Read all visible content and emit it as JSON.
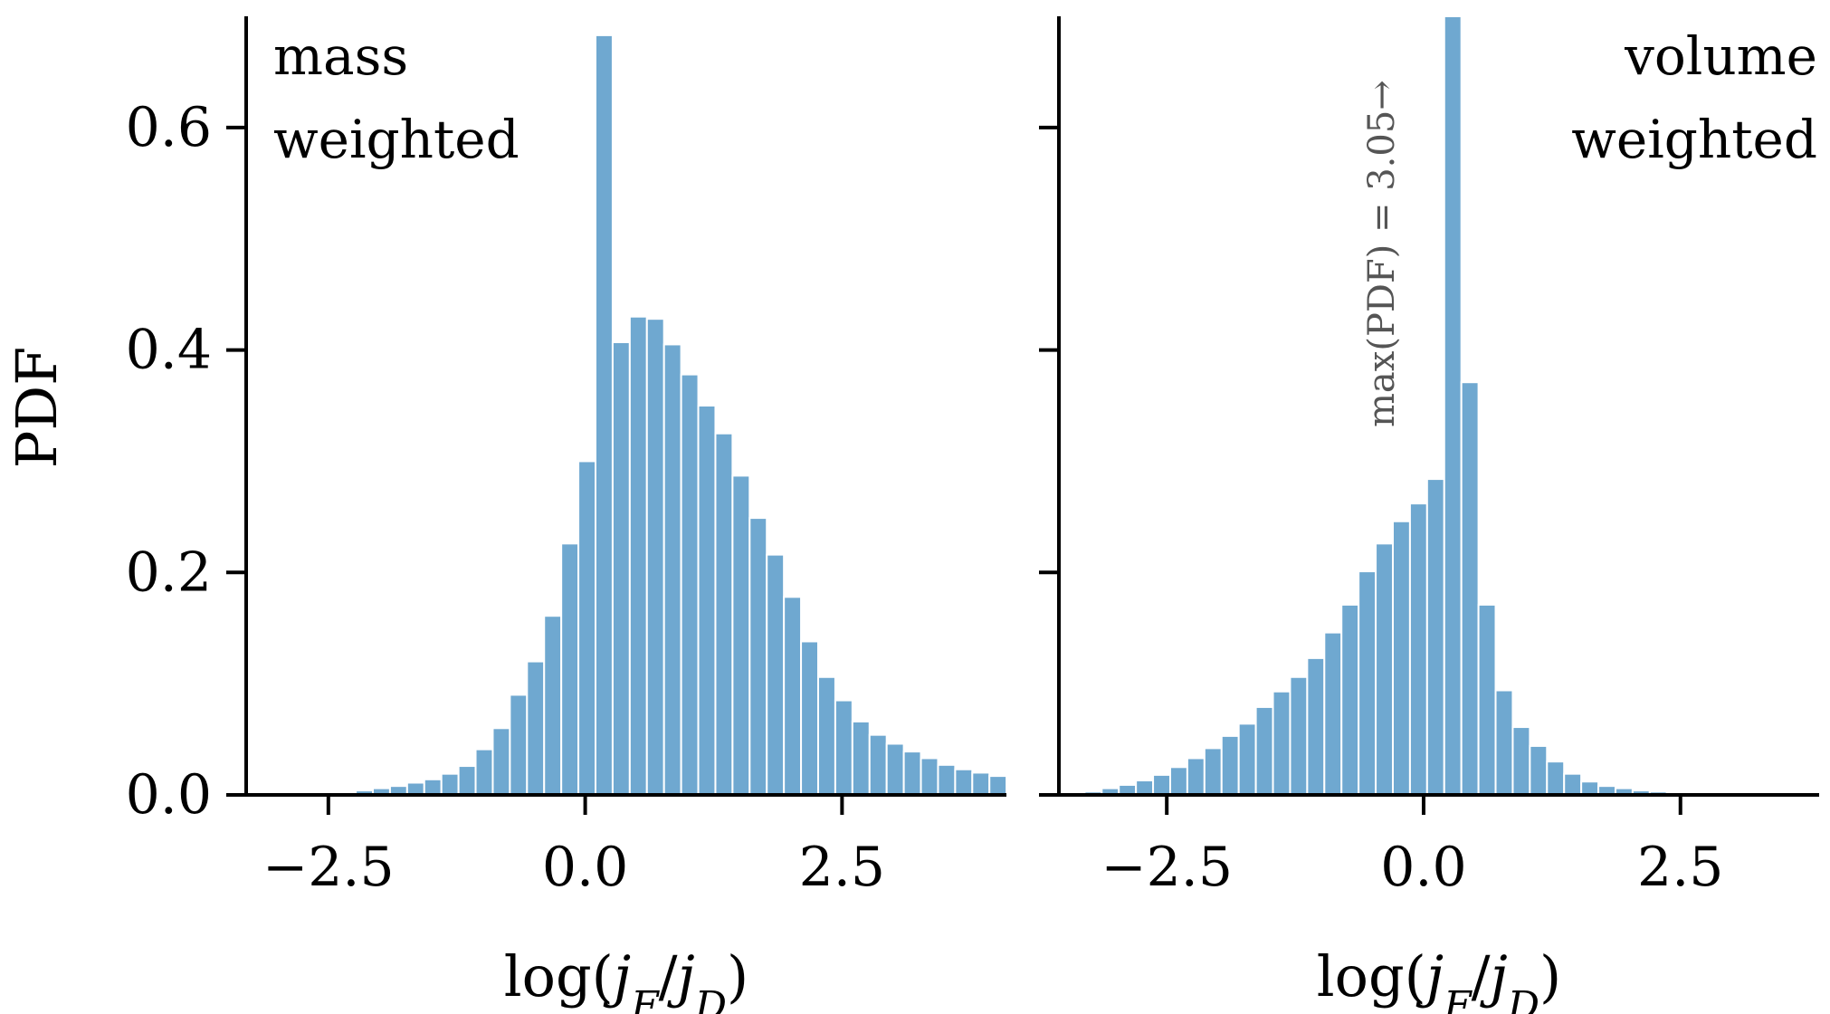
{
  "chart_data": [
    {
      "type": "bar",
      "panel": "left",
      "label_lines": [
        "mass",
        "weighted"
      ],
      "label_align": "left",
      "ylabel": "PDF",
      "xlabel": "log(jF/jD)",
      "ylim": [
        0,
        0.7
      ],
      "xlim": [
        -3.3,
        4.1
      ],
      "yticks": [
        "0.0",
        "0.2",
        "0.4",
        "0.6"
      ],
      "xticks": [
        "−2.5",
        "0.0",
        "2.5"
      ],
      "bin_start": -2.4,
      "bin_width": 0.1667,
      "values": [
        0.0,
        0.004,
        0.006,
        0.008,
        0.011,
        0.014,
        0.019,
        0.026,
        0.041,
        0.06,
        0.09,
        0.12,
        0.161,
        0.226,
        0.3,
        0.683,
        0.407,
        0.43,
        0.428,
        0.405,
        0.378,
        0.35,
        0.325,
        0.287,
        0.249,
        0.216,
        0.178,
        0.138,
        0.106,
        0.085,
        0.066,
        0.054,
        0.046,
        0.039,
        0.033,
        0.027,
        0.023,
        0.02,
        0.017
      ]
    },
    {
      "type": "bar",
      "panel": "right",
      "label_lines": [
        "volume",
        "weighted"
      ],
      "label_align": "right",
      "ylabel": "",
      "xlabel": "log(jF/jD)",
      "ylim": [
        0,
        0.7
      ],
      "xlim": [
        -3.55,
        3.85
      ],
      "yticks": [],
      "xticks": [
        "−2.5",
        "0.0",
        "2.5"
      ],
      "bin_start": -3.3,
      "bin_width": 0.1667,
      "values": [
        0.003,
        0.006,
        0.009,
        0.013,
        0.018,
        0.025,
        0.033,
        0.042,
        0.053,
        0.064,
        0.079,
        0.093,
        0.106,
        0.123,
        0.146,
        0.171,
        0.201,
        0.226,
        0.246,
        0.262,
        0.284,
        3.05,
        0.371,
        0.171,
        0.094,
        0.061,
        0.044,
        0.03,
        0.019,
        0.012,
        0.008,
        0.006,
        0.004,
        0.003,
        0.002,
        0.002,
        0.001,
        0.001,
        0.0,
        0.0,
        0.0
      ],
      "annotation": "max(PDF) = 3.05→"
    }
  ]
}
